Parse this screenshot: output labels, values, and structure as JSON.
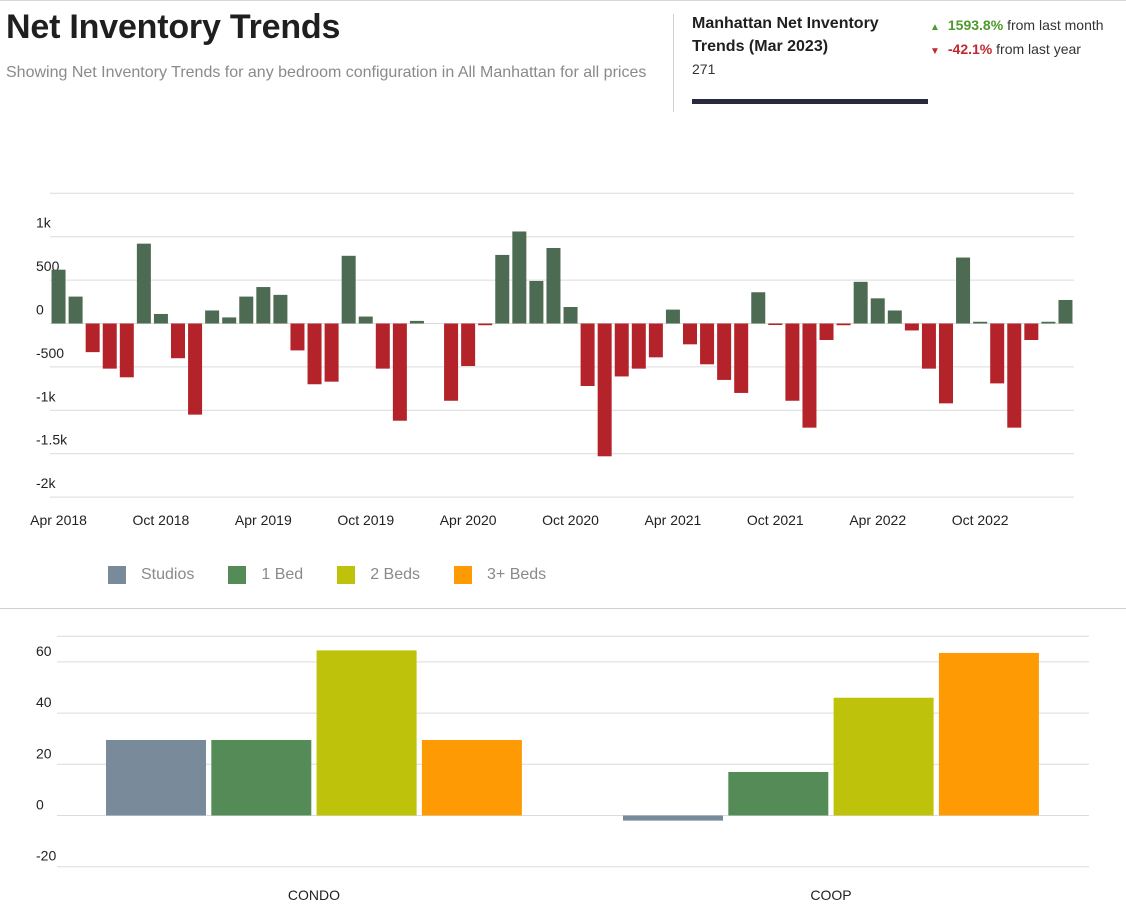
{
  "header": {
    "title": "Net Inventory Trends",
    "subtitle": "Showing Net Inventory Trends for any bedroom configuration in All Manhattan for all prices"
  },
  "stat": {
    "heading": "Manhattan Net Inventory Trends  (Mar 2023)",
    "value": "271",
    "month_change": {
      "icon": "triangle-up-icon",
      "value": "1593.8%",
      "label": "from last month",
      "color": "#4d9a2a"
    },
    "year_change": {
      "icon": "triangle-down-icon",
      "value": "-42.1%",
      "label": "from last year",
      "color": "#c0282d"
    }
  },
  "legend": [
    {
      "label": "Studios",
      "color": "#798a9b"
    },
    {
      "label": "1 Bed",
      "color": "#558b57"
    },
    {
      "label": "2 Beds",
      "color": "#bfc20a"
    },
    {
      "label": "3+ Beds",
      "color": "#fe9a03"
    }
  ],
  "chart_data": [
    {
      "type": "bar",
      "x_start": "Apr 2018",
      "x_end": "Mar 2023",
      "x_tick_labels": [
        "Apr 2018",
        "Oct 2018",
        "Apr 2019",
        "Oct 2019",
        "Apr 2020",
        "Oct 2020",
        "Apr 2021",
        "Oct 2021",
        "Apr 2022",
        "Oct 2022"
      ],
      "y_tick_labels": [
        "1k",
        "500",
        "0",
        "-500",
        "-1k",
        "-1.5k",
        "-2k"
      ],
      "ylim": [
        -2000,
        1500
      ],
      "grid": true,
      "positive_color": "#4d6b52",
      "negative_color": "#b5232a",
      "values": [
        620,
        310,
        -330,
        -520,
        -620,
        920,
        110,
        -400,
        -1050,
        150,
        70,
        310,
        420,
        330,
        -310,
        -700,
        -670,
        780,
        80,
        -520,
        -1120,
        30,
        0,
        -890,
        -490,
        -20,
        790,
        1060,
        490,
        870,
        190,
        -720,
        -1530,
        -610,
        -520,
        -390,
        160,
        -240,
        -470,
        -650,
        -800,
        360,
        -10,
        -890,
        -1200,
        -190,
        -20,
        480,
        290,
        150,
        -80,
        -520,
        -920,
        760,
        20,
        -690,
        -1200,
        -190,
        20,
        271
      ]
    },
    {
      "type": "bar",
      "categories": [
        "CONDO",
        "COOP"
      ],
      "series": [
        {
          "name": "Studios",
          "values": [
            29.5,
            -2
          ]
        },
        {
          "name": "1 Bed",
          "values": [
            29.5,
            17
          ]
        },
        {
          "name": "2 Beds",
          "values": [
            64.5,
            46
          ]
        },
        {
          "name": "3+ Beds",
          "values": [
            29.5,
            63.5
          ]
        }
      ],
      "y_tick_labels": [
        "60",
        "40",
        "20",
        "0",
        "-20"
      ],
      "ylim": [
        -20,
        70
      ],
      "grid": true
    }
  ]
}
